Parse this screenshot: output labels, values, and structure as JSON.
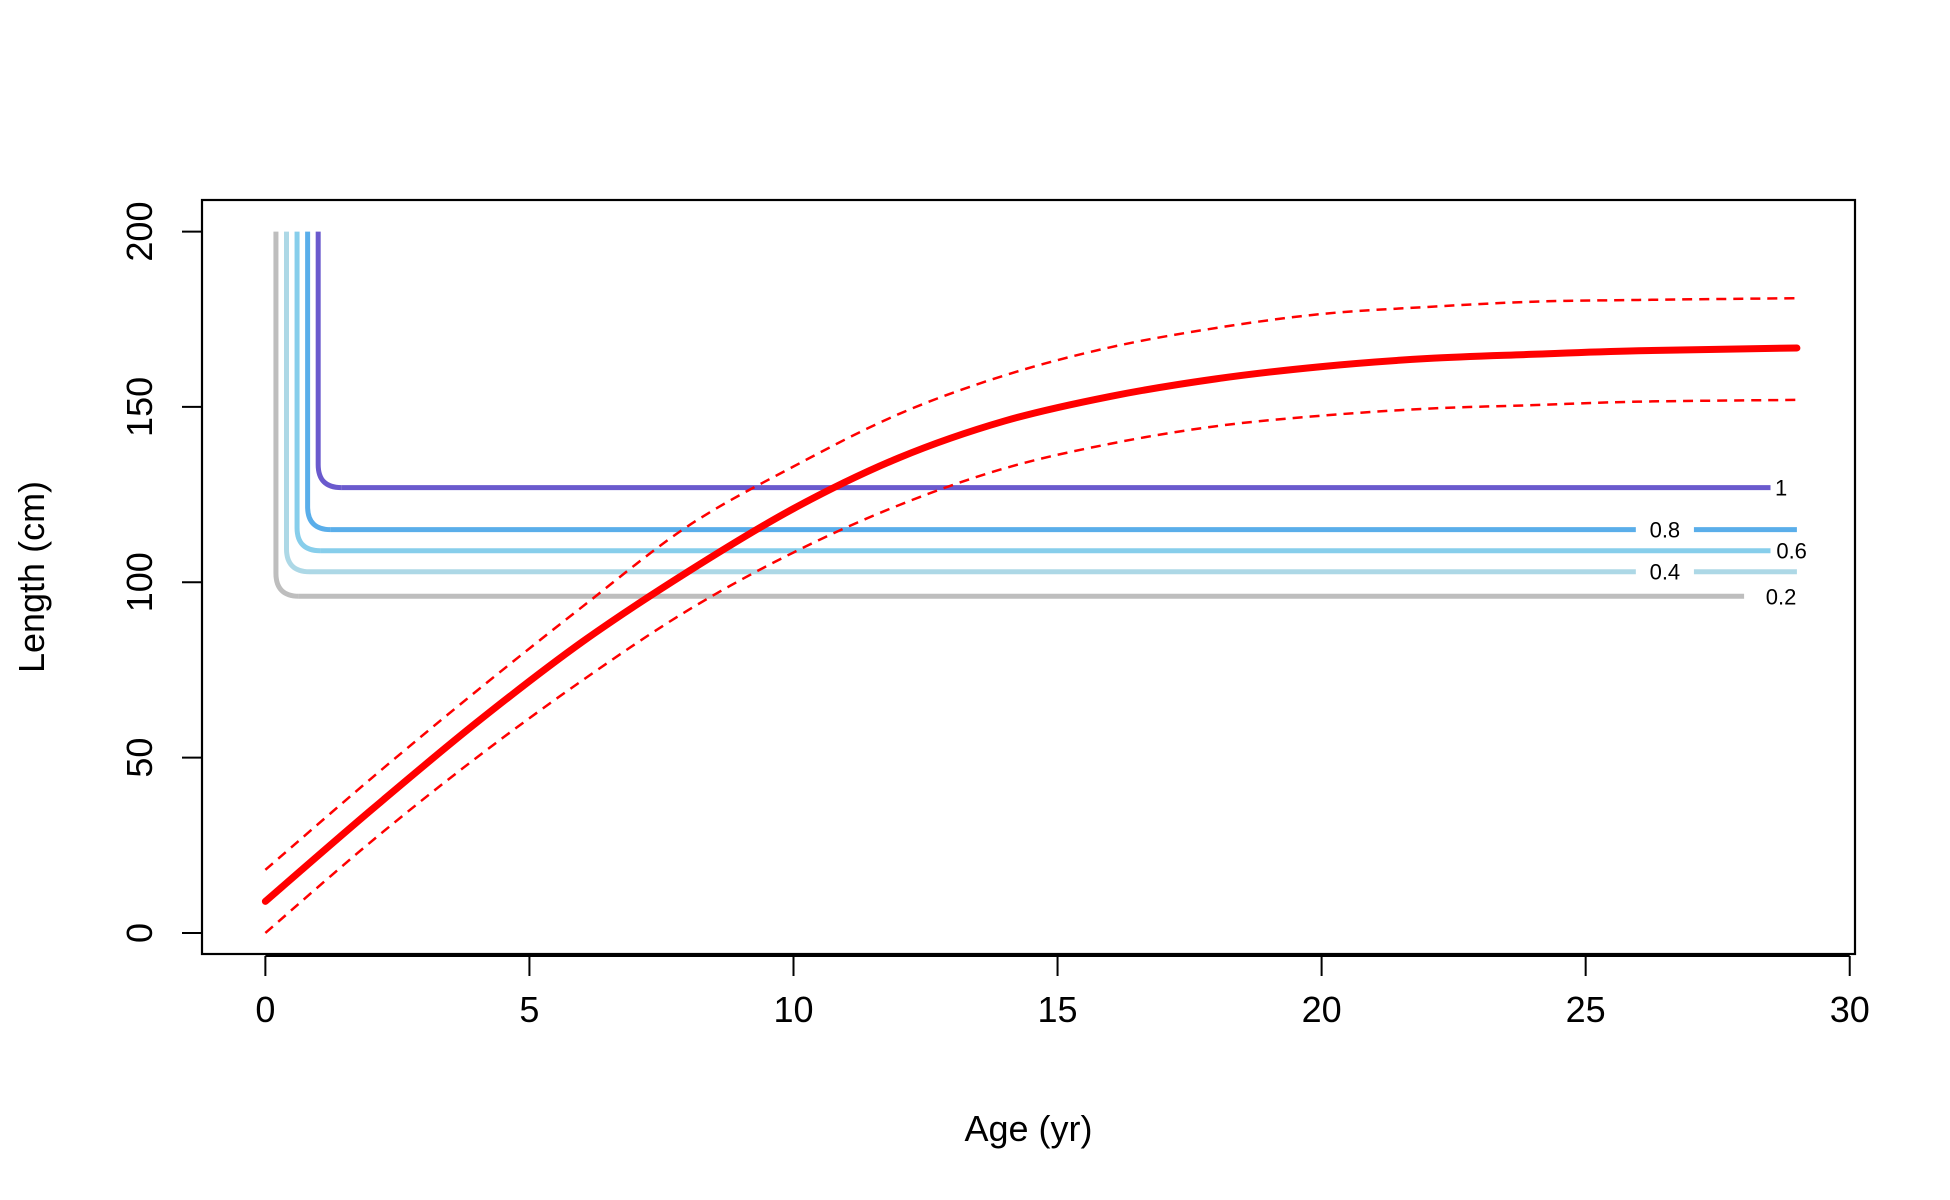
{
  "chart_data": {
    "type": "line",
    "xlabel": "Age (yr)",
    "ylabel": "Length (cm)",
    "xlim": [
      -1.2,
      30.1
    ],
    "ylim": [
      -6,
      209
    ],
    "x_ticks": [
      0,
      5,
      10,
      15,
      20,
      25,
      30
    ],
    "y_ticks": [
      0,
      50,
      100,
      150,
      200
    ],
    "grid": false,
    "legend": "none",
    "growth_curve": {
      "color": "#ff0000",
      "mean": {
        "x": [
          0,
          2,
          4,
          6,
          8,
          10,
          12,
          14,
          16,
          18,
          20,
          22,
          24,
          26,
          29
        ],
        "y": [
          9,
          35,
          60,
          83,
          103,
          121,
          135.5,
          146,
          153,
          158,
          161.5,
          163.8,
          165,
          166,
          166.8
        ]
      },
      "upper": {
        "x": [
          0,
          2,
          4,
          6,
          8,
          10,
          12,
          14,
          16,
          18,
          20,
          22,
          24,
          26,
          29
        ],
        "y": [
          18,
          44,
          69,
          93,
          116,
          133,
          148,
          159,
          167,
          172.5,
          176.5,
          178.5,
          180,
          180.5,
          181
        ]
      },
      "lower": {
        "x": [
          0,
          2,
          4,
          6,
          8,
          10,
          12,
          14,
          16,
          18,
          20,
          22,
          24,
          26,
          29
        ],
        "y": [
          0,
          26,
          50,
          72,
          92,
          108.5,
          122,
          132.5,
          139.5,
          144.5,
          147.5,
          149.5,
          150.5,
          151.5,
          152
        ]
      }
    },
    "selectivity_contours": [
      {
        "level": "1",
        "color": "#6a5acd",
        "x_left": 1.0,
        "y_flat": 127,
        "x_right": 28.5,
        "label_x": 28.7,
        "label_gap": null
      },
      {
        "level": "0.8",
        "color": "#5aaeea",
        "x_left": 0.8,
        "y_flat": 115,
        "x_right": 29.0,
        "label_x": 26.5,
        "label_gap": [
          25.95,
          27.05
        ]
      },
      {
        "level": "0.6",
        "color": "#87ceeb",
        "x_left": 0.6,
        "y_flat": 109,
        "x_right": 28.5,
        "label_x": 28.9,
        "label_gap": null
      },
      {
        "level": "0.4",
        "color": "#add8e6",
        "x_left": 0.4,
        "y_flat": 103,
        "x_right": 29.0,
        "label_x": 26.5,
        "label_gap": [
          25.95,
          27.05
        ]
      },
      {
        "level": "0.2",
        "color": "#bebebe",
        "x_left": 0.2,
        "y_flat": 96,
        "x_right": 28.0,
        "label_x": 28.7,
        "label_gap": null
      }
    ]
  }
}
